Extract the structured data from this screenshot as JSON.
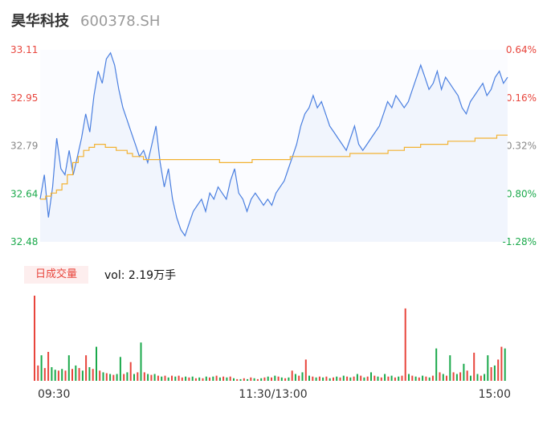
{
  "header": {
    "name": "昊华科技",
    "code": "600378.SH"
  },
  "volume_panel": {
    "tab_label": "日成交量",
    "summary": "vol: 2.19万手"
  },
  "colors": {
    "price_line": "#4a7fe0",
    "avg_line": "#f2b232",
    "up": "#e8453c",
    "down": "#1aa94b",
    "fill": "#f1f5fd"
  },
  "chart_data": [
    {
      "type": "line",
      "title": "",
      "ylim": [
        32.48,
        33.11
      ],
      "y_ticks": [
        "33.11",
        "32.95",
        "32.79",
        "32.64",
        "32.48"
      ],
      "y2_ticks": [
        "0.64%",
        "0.16%",
        "-0.32%",
        "-0.80%",
        "-1.28%"
      ],
      "x_ticks": [
        "09:30",
        "11:30/13:00",
        "15:00"
      ],
      "series": [
        {
          "role": "price",
          "values": [
            32.62,
            32.7,
            32.56,
            32.66,
            32.82,
            32.72,
            32.7,
            32.78,
            32.7,
            32.76,
            32.82,
            32.9,
            32.84,
            32.96,
            33.04,
            33.0,
            33.08,
            33.1,
            33.06,
            32.98,
            32.92,
            32.88,
            32.84,
            32.8,
            32.76,
            32.78,
            32.74,
            32.8,
            32.86,
            32.74,
            32.66,
            32.72,
            32.62,
            32.56,
            32.52,
            32.5,
            32.54,
            32.58,
            32.6,
            32.62,
            32.58,
            32.64,
            32.62,
            32.66,
            32.64,
            32.62,
            32.68,
            32.72,
            32.64,
            32.62,
            32.58,
            32.62,
            32.64,
            32.62,
            32.6,
            32.62,
            32.6,
            32.64,
            32.66,
            32.68,
            32.72,
            32.76,
            32.8,
            32.86,
            32.9,
            32.92,
            32.96,
            32.92,
            32.94,
            32.9,
            32.86,
            32.84,
            32.82,
            32.8,
            32.78,
            32.82,
            32.86,
            32.8,
            32.78,
            32.8,
            32.82,
            32.84,
            32.86,
            32.9,
            32.94,
            32.92,
            32.96,
            32.94,
            32.92,
            32.94,
            32.98,
            33.02,
            33.06,
            33.02,
            32.98,
            33.0,
            33.04,
            32.98,
            33.02,
            33.0,
            32.98,
            32.96,
            32.92,
            32.9,
            32.94,
            32.96,
            32.98,
            33.0,
            32.96,
            32.98,
            33.02,
            33.04,
            33.0,
            33.02
          ],
          "note": ""
        },
        {
          "role": "average",
          "values": [
            32.62,
            32.63,
            32.64,
            32.65,
            32.67,
            32.7,
            32.74,
            32.76,
            32.78,
            32.79,
            32.8,
            32.8,
            32.79,
            32.79,
            32.78,
            32.78,
            32.77,
            32.76,
            32.76,
            32.75,
            32.75,
            32.75,
            32.75,
            32.75,
            32.75,
            32.75,
            32.75,
            32.75,
            32.75,
            32.75,
            32.75,
            32.75,
            32.75,
            32.74,
            32.74,
            32.74,
            32.74,
            32.74,
            32.74,
            32.75,
            32.75,
            32.75,
            32.75,
            32.75,
            32.75,
            32.75,
            32.76,
            32.76,
            32.76,
            32.76,
            32.76,
            32.76,
            32.76,
            32.76,
            32.76,
            32.76,
            32.76,
            32.77,
            32.77,
            32.77,
            32.77,
            32.77,
            32.77,
            32.77,
            32.78,
            32.78,
            32.78,
            32.79,
            32.79,
            32.79,
            32.8,
            32.8,
            32.8,
            32.8,
            32.8,
            32.81,
            32.81,
            32.81,
            32.81,
            32.81,
            32.82,
            32.82,
            32.82,
            32.82,
            32.83,
            32.83,
            32.83
          ],
          "note": ""
        }
      ]
    },
    {
      "type": "bar",
      "title": "",
      "ylim": [
        0,
        1
      ],
      "volumes": [
        {
          "v": 1.0,
          "up": true
        },
        {
          "v": 0.18,
          "up": true
        },
        {
          "v": 0.3,
          "up": false
        },
        {
          "v": 0.15,
          "up": true
        },
        {
          "v": 0.34,
          "up": true
        },
        {
          "v": 0.16,
          "up": false
        },
        {
          "v": 0.13,
          "up": false
        },
        {
          "v": 0.12,
          "up": true
        },
        {
          "v": 0.14,
          "up": false
        },
        {
          "v": 0.12,
          "up": true
        },
        {
          "v": 0.3,
          "up": false
        },
        {
          "v": 0.14,
          "up": true
        },
        {
          "v": 0.18,
          "up": false
        },
        {
          "v": 0.15,
          "up": true
        },
        {
          "v": 0.12,
          "up": false
        },
        {
          "v": 0.3,
          "up": true
        },
        {
          "v": 0.16,
          "up": false
        },
        {
          "v": 0.14,
          "up": true
        },
        {
          "v": 0.4,
          "up": false
        },
        {
          "v": 0.12,
          "up": true
        },
        {
          "v": 0.1,
          "up": false
        },
        {
          "v": 0.09,
          "up": true
        },
        {
          "v": 0.08,
          "up": false
        },
        {
          "v": 0.07,
          "up": true
        },
        {
          "v": 0.08,
          "up": false
        },
        {
          "v": 0.28,
          "up": false
        },
        {
          "v": 0.08,
          "up": true
        },
        {
          "v": 0.1,
          "up": false
        },
        {
          "v": 0.22,
          "up": true
        },
        {
          "v": 0.08,
          "up": false
        },
        {
          "v": 0.1,
          "up": true
        },
        {
          "v": 0.45,
          "up": false
        },
        {
          "v": 0.1,
          "up": true
        },
        {
          "v": 0.08,
          "up": false
        },
        {
          "v": 0.07,
          "up": true
        },
        {
          "v": 0.08,
          "up": false
        },
        {
          "v": 0.06,
          "up": true
        },
        {
          "v": 0.05,
          "up": false
        },
        {
          "v": 0.06,
          "up": true
        },
        {
          "v": 0.04,
          "up": false
        },
        {
          "v": 0.06,
          "up": true
        },
        {
          "v": 0.05,
          "up": false
        },
        {
          "v": 0.06,
          "up": true
        },
        {
          "v": 0.04,
          "up": true
        },
        {
          "v": 0.05,
          "up": false
        },
        {
          "v": 0.04,
          "up": true
        },
        {
          "v": 0.05,
          "up": false
        },
        {
          "v": 0.03,
          "up": true
        },
        {
          "v": 0.04,
          "up": false
        },
        {
          "v": 0.03,
          "up": true
        },
        {
          "v": 0.05,
          "up": false
        },
        {
          "v": 0.04,
          "up": true
        },
        {
          "v": 0.05,
          "up": false
        },
        {
          "v": 0.06,
          "up": true
        },
        {
          "v": 0.04,
          "up": false
        },
        {
          "v": 0.05,
          "up": true
        },
        {
          "v": 0.04,
          "up": false
        },
        {
          "v": 0.05,
          "up": true
        },
        {
          "v": 0.03,
          "up": false
        },
        {
          "v": 0.02,
          "up": true
        },
        {
          "v": 0.02,
          "up": false
        },
        {
          "v": 0.03,
          "up": true
        },
        {
          "v": 0.02,
          "up": false
        },
        {
          "v": 0.04,
          "up": true
        },
        {
          "v": 0.03,
          "up": false
        },
        {
          "v": 0.02,
          "up": true
        },
        {
          "v": 0.03,
          "up": false
        },
        {
          "v": 0.04,
          "up": true
        },
        {
          "v": 0.05,
          "up": false
        },
        {
          "v": 0.04,
          "up": true
        },
        {
          "v": 0.06,
          "up": false
        },
        {
          "v": 0.05,
          "up": true
        },
        {
          "v": 0.04,
          "up": false
        },
        {
          "v": 0.03,
          "up": true
        },
        {
          "v": 0.04,
          "up": false
        },
        {
          "v": 0.12,
          "up": true
        },
        {
          "v": 0.08,
          "up": false
        },
        {
          "v": 0.06,
          "up": true
        },
        {
          "v": 0.1,
          "up": false
        },
        {
          "v": 0.25,
          "up": true
        },
        {
          "v": 0.06,
          "up": false
        },
        {
          "v": 0.05,
          "up": true
        },
        {
          "v": 0.04,
          "up": false
        },
        {
          "v": 0.05,
          "up": true
        },
        {
          "v": 0.04,
          "up": false
        },
        {
          "v": 0.05,
          "up": true
        },
        {
          "v": 0.03,
          "up": false
        },
        {
          "v": 0.04,
          "up": true
        },
        {
          "v": 0.05,
          "up": false
        },
        {
          "v": 0.04,
          "up": true
        },
        {
          "v": 0.06,
          "up": false
        },
        {
          "v": 0.05,
          "up": true
        },
        {
          "v": 0.04,
          "up": false
        },
        {
          "v": 0.05,
          "up": true
        },
        {
          "v": 0.08,
          "up": false
        },
        {
          "v": 0.06,
          "up": true
        },
        {
          "v": 0.04,
          "up": false
        },
        {
          "v": 0.05,
          "up": true
        },
        {
          "v": 0.1,
          "up": false
        },
        {
          "v": 0.06,
          "up": true
        },
        {
          "v": 0.05,
          "up": false
        },
        {
          "v": 0.04,
          "up": true
        },
        {
          "v": 0.08,
          "up": false
        },
        {
          "v": 0.05,
          "up": true
        },
        {
          "v": 0.06,
          "up": false
        },
        {
          "v": 0.04,
          "up": true
        },
        {
          "v": 0.05,
          "up": false
        },
        {
          "v": 0.06,
          "up": true
        },
        {
          "v": 0.85,
          "up": true
        },
        {
          "v": 0.08,
          "up": false
        },
        {
          "v": 0.06,
          "up": true
        },
        {
          "v": 0.05,
          "up": false
        },
        {
          "v": 0.04,
          "up": true
        },
        {
          "v": 0.06,
          "up": false
        },
        {
          "v": 0.05,
          "up": true
        },
        {
          "v": 0.04,
          "up": false
        },
        {
          "v": 0.06,
          "up": true
        },
        {
          "v": 0.38,
          "up": false
        },
        {
          "v": 0.1,
          "up": true
        },
        {
          "v": 0.08,
          "up": false
        },
        {
          "v": 0.06,
          "up": true
        },
        {
          "v": 0.3,
          "up": false
        },
        {
          "v": 0.1,
          "up": true
        },
        {
          "v": 0.08,
          "up": false
        },
        {
          "v": 0.1,
          "up": true
        },
        {
          "v": 0.2,
          "up": false
        },
        {
          "v": 0.12,
          "up": true
        },
        {
          "v": 0.06,
          "up": false
        },
        {
          "v": 0.33,
          "up": true
        },
        {
          "v": 0.08,
          "up": false
        },
        {
          "v": 0.06,
          "up": true
        },
        {
          "v": 0.08,
          "up": false
        },
        {
          "v": 0.3,
          "up": false
        },
        {
          "v": 0.16,
          "up": true
        },
        {
          "v": 0.18,
          "up": false
        },
        {
          "v": 0.25,
          "up": true
        },
        {
          "v": 0.4,
          "up": true
        },
        {
          "v": 0.38,
          "up": false
        }
      ]
    }
  ]
}
